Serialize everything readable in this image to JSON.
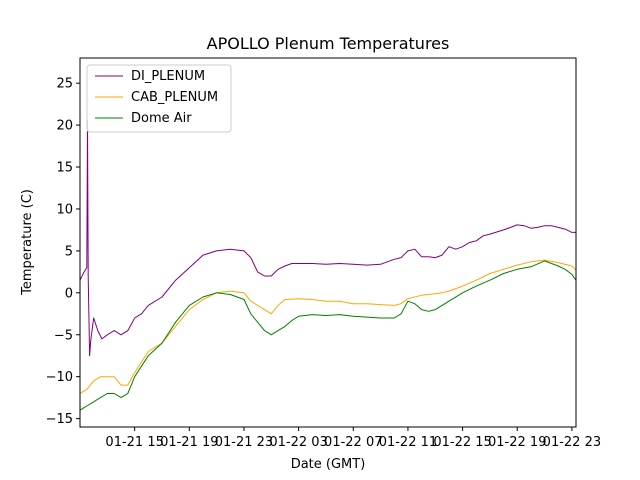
{
  "chart_data": {
    "type": "line",
    "title": "APOLLO Plenum Temperatures",
    "xlabel": "Date (GMT)",
    "ylabel": "Temperature (C)",
    "x_unit": "hours since 01-21 11:00 GMT",
    "xlim": [
      0,
      36.3
    ],
    "ylim": [
      -16,
      28
    ],
    "x_ticks": [
      {
        "x": 4,
        "label": "01-21 15"
      },
      {
        "x": 8,
        "label": "01-21 19"
      },
      {
        "x": 12,
        "label": "01-21 23"
      },
      {
        "x": 16,
        "label": "01-22 03"
      },
      {
        "x": 20,
        "label": "01-22 07"
      },
      {
        "x": 24,
        "label": "01-22 11"
      },
      {
        "x": 28,
        "label": "01-22 15"
      },
      {
        "x": 32,
        "label": "01-22 19"
      },
      {
        "x": 36,
        "label": "01-22 23"
      }
    ],
    "y_ticks": [
      {
        "y": -15,
        "label": "−15"
      },
      {
        "y": -10,
        "label": "−10"
      },
      {
        "y": -5,
        "label": "−5"
      },
      {
        "y": 0,
        "label": "0"
      },
      {
        "y": 5,
        "label": "5"
      },
      {
        "y": 10,
        "label": "10"
      },
      {
        "y": 15,
        "label": "15"
      },
      {
        "y": 20,
        "label": "20"
      },
      {
        "y": 25,
        "label": "25"
      }
    ],
    "legend_position": "top-left",
    "series": [
      {
        "name": "DI_PLENUM",
        "color": "#800080",
        "x": [
          0,
          0.3,
          0.5,
          0.55,
          0.6,
          0.7,
          0.8,
          1.0,
          1.3,
          1.6,
          2.0,
          2.5,
          3.0,
          3.5,
          4.0,
          4.5,
          5.0,
          6.0,
          7.0,
          8.0,
          9.0,
          10.0,
          11.0,
          12.0,
          12.5,
          13.0,
          13.5,
          14.0,
          14.5,
          15.0,
          15.5,
          16.0,
          17.0,
          18.0,
          19.0,
          20.0,
          21.0,
          22.0,
          23.0,
          23.5,
          24.0,
          24.5,
          25.0,
          25.5,
          26.0,
          26.5,
          27.0,
          27.5,
          28.0,
          28.5,
          29.0,
          29.5,
          30.0,
          31.0,
          32.0,
          32.5,
          33.0,
          33.5,
          34.0,
          34.5,
          35.0,
          35.5,
          36.0,
          36.3
        ],
        "y": [
          1.5,
          2.5,
          3.0,
          20.5,
          2.0,
          -7.5,
          -5.5,
          -3.0,
          -4.5,
          -5.5,
          -5.0,
          -4.5,
          -5.0,
          -4.5,
          -3.0,
          -2.5,
          -1.5,
          -0.5,
          1.5,
          3.0,
          4.5,
          5.0,
          5.2,
          5.0,
          4.2,
          2.5,
          2.0,
          2.0,
          2.8,
          3.2,
          3.5,
          3.5,
          3.5,
          3.4,
          3.5,
          3.4,
          3.3,
          3.4,
          4.0,
          4.2,
          5.0,
          5.2,
          4.3,
          4.3,
          4.2,
          4.5,
          5.5,
          5.2,
          5.5,
          6.0,
          6.2,
          6.8,
          7.0,
          7.5,
          8.1,
          8.0,
          7.7,
          7.8,
          8.0,
          8.0,
          7.8,
          7.6,
          7.2,
          7.2
        ]
      },
      {
        "name": "CAB_PLENUM",
        "color": "#ffa500",
        "x": [
          0,
          0.5,
          1.0,
          1.5,
          2.0,
          2.5,
          3.0,
          3.5,
          4.0,
          5.0,
          6.0,
          7.0,
          8.0,
          9.0,
          10.0,
          11.0,
          11.5,
          12.0,
          12.5,
          13.0,
          13.5,
          14.0,
          14.5,
          15.0,
          16.0,
          17.0,
          18.0,
          19.0,
          20.0,
          21.0,
          22.0,
          23.0,
          23.5,
          24.0,
          25.0,
          26.0,
          26.5,
          27.0,
          28.0,
          29.0,
          30.0,
          31.0,
          32.0,
          33.0,
          34.0,
          35.0,
          36.0,
          36.3
        ],
        "y": [
          -12.0,
          -11.5,
          -10.5,
          -10.0,
          -10.0,
          -10.0,
          -11.0,
          -11.0,
          -9.5,
          -7.0,
          -6.0,
          -4.0,
          -2.0,
          -0.8,
          0.0,
          0.2,
          0.1,
          0.0,
          -1.0,
          -1.5,
          -2.0,
          -2.5,
          -1.5,
          -0.8,
          -0.7,
          -0.8,
          -1.0,
          -1.0,
          -1.3,
          -1.3,
          -1.4,
          -1.5,
          -1.3,
          -0.7,
          -0.3,
          -0.1,
          0.0,
          0.2,
          0.8,
          1.5,
          2.3,
          2.8,
          3.3,
          3.7,
          3.9,
          3.6,
          3.2,
          2.7
        ]
      },
      {
        "name": "Dome Air",
        "color": "#008000",
        "x": [
          0,
          0.5,
          1.0,
          1.5,
          2.0,
          2.5,
          3.0,
          3.5,
          4.0,
          5.0,
          6.0,
          7.0,
          8.0,
          9.0,
          10.0,
          11.0,
          12.0,
          12.5,
          13.0,
          13.5,
          14.0,
          14.5,
          15.0,
          15.5,
          16.0,
          17.0,
          18.0,
          19.0,
          20.0,
          21.0,
          22.0,
          23.0,
          23.5,
          24.0,
          24.5,
          25.0,
          25.5,
          26.0,
          27.0,
          28.0,
          29.0,
          30.0,
          31.0,
          32.0,
          33.0,
          34.0,
          35.0,
          35.5,
          36.0,
          36.3
        ],
        "y": [
          -14.0,
          -13.5,
          -13.0,
          -12.5,
          -12.0,
          -12.0,
          -12.5,
          -12.0,
          -10.0,
          -7.5,
          -6.0,
          -3.5,
          -1.5,
          -0.5,
          0.0,
          -0.2,
          -0.8,
          -2.5,
          -3.5,
          -4.5,
          -5.0,
          -4.5,
          -4.0,
          -3.3,
          -2.8,
          -2.6,
          -2.7,
          -2.6,
          -2.8,
          -2.9,
          -3.0,
          -3.0,
          -2.5,
          -1.0,
          -1.3,
          -2.0,
          -2.2,
          -2.0,
          -1.0,
          0.0,
          0.8,
          1.5,
          2.3,
          2.8,
          3.1,
          3.8,
          3.2,
          2.8,
          2.2,
          1.5
        ]
      }
    ]
  }
}
